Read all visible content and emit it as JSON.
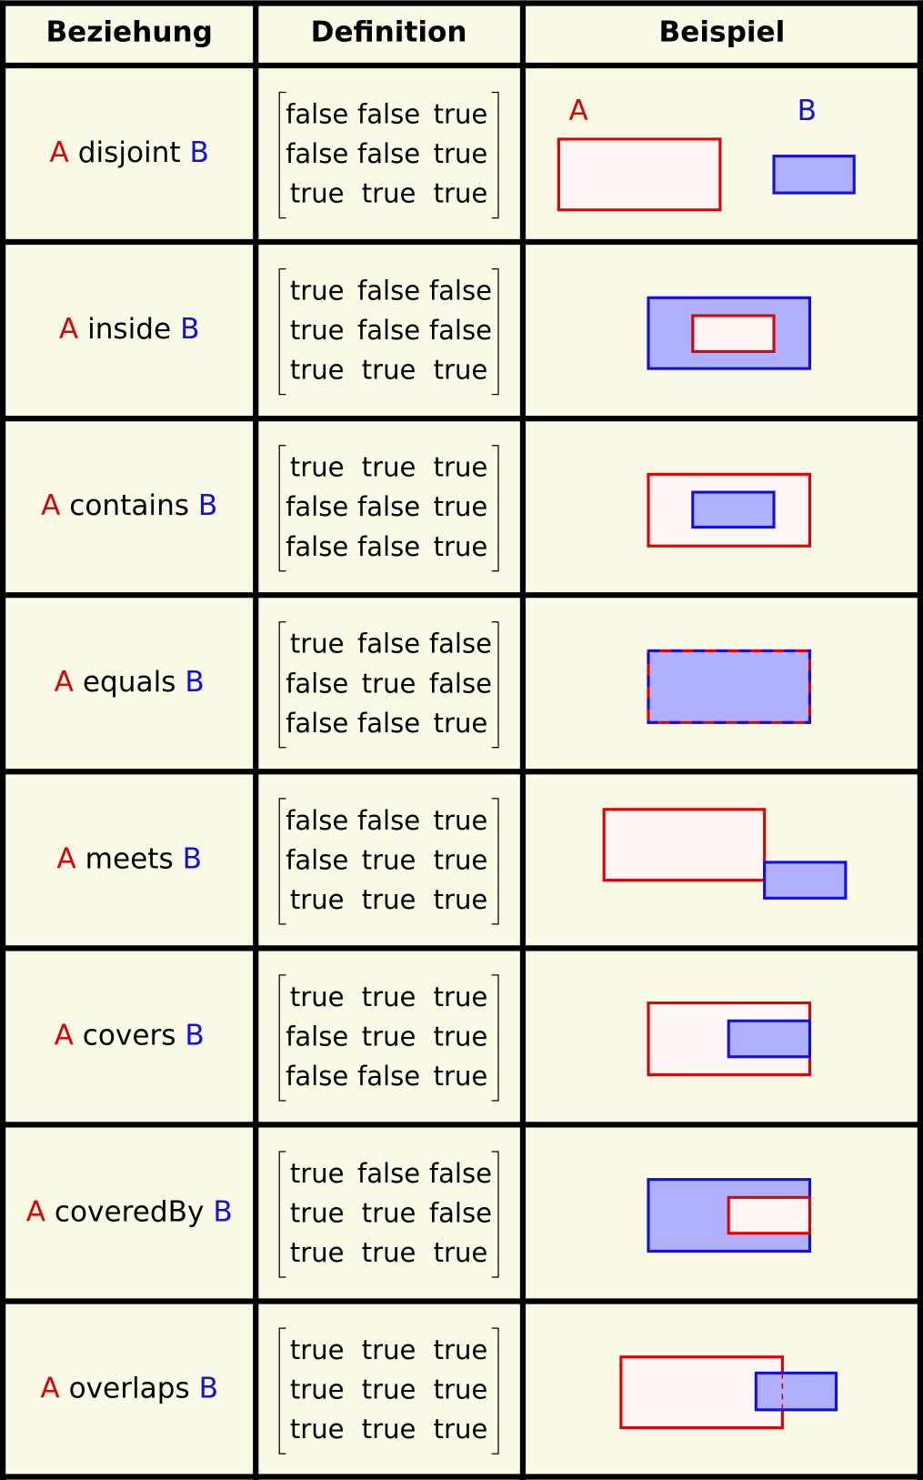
{
  "table": {
    "headers": [
      "Beziehung",
      "Definition",
      "Beispiel"
    ],
    "rows": [
      {
        "a": "A",
        "relation": "disjoint",
        "b": "B",
        "matrix": [
          [
            "false",
            "false",
            "true"
          ],
          [
            "false",
            "false",
            "true"
          ],
          [
            "true",
            "true",
            "true"
          ]
        ]
      },
      {
        "a": "A",
        "relation": "inside",
        "b": "B",
        "matrix": [
          [
            "true",
            "false",
            "false"
          ],
          [
            "true",
            "false",
            "false"
          ],
          [
            "true",
            "true",
            "true"
          ]
        ]
      },
      {
        "a": "A",
        "relation": "contains",
        "b": "B",
        "matrix": [
          [
            "true",
            "true",
            "true"
          ],
          [
            "false",
            "false",
            "true"
          ],
          [
            "false",
            "false",
            "true"
          ]
        ]
      },
      {
        "a": "A",
        "relation": "equals",
        "b": "B",
        "matrix": [
          [
            "true",
            "false",
            "false"
          ],
          [
            "false",
            "true",
            "false"
          ],
          [
            "false",
            "false",
            "true"
          ]
        ]
      },
      {
        "a": "A",
        "relation": "meets",
        "b": "B",
        "matrix": [
          [
            "false",
            "false",
            "true"
          ],
          [
            "false",
            "true",
            "true"
          ],
          [
            "true",
            "true",
            "true"
          ]
        ]
      },
      {
        "a": "A",
        "relation": "covers",
        "b": "B",
        "matrix": [
          [
            "true",
            "true",
            "true"
          ],
          [
            "false",
            "true",
            "true"
          ],
          [
            "false",
            "false",
            "true"
          ]
        ]
      },
      {
        "a": "A",
        "relation": "coveredBy",
        "b": "B",
        "matrix": [
          [
            "true",
            "false",
            "false"
          ],
          [
            "true",
            "true",
            "false"
          ],
          [
            "true",
            "true",
            "true"
          ]
        ]
      },
      {
        "a": "A",
        "relation": "overlaps",
        "b": "B",
        "matrix": [
          [
            "true",
            "true",
            "true"
          ],
          [
            "true",
            "true",
            "true"
          ],
          [
            "true",
            "true",
            "true"
          ]
        ]
      }
    ]
  },
  "example_labels": {
    "a": "A",
    "b": "B"
  }
}
